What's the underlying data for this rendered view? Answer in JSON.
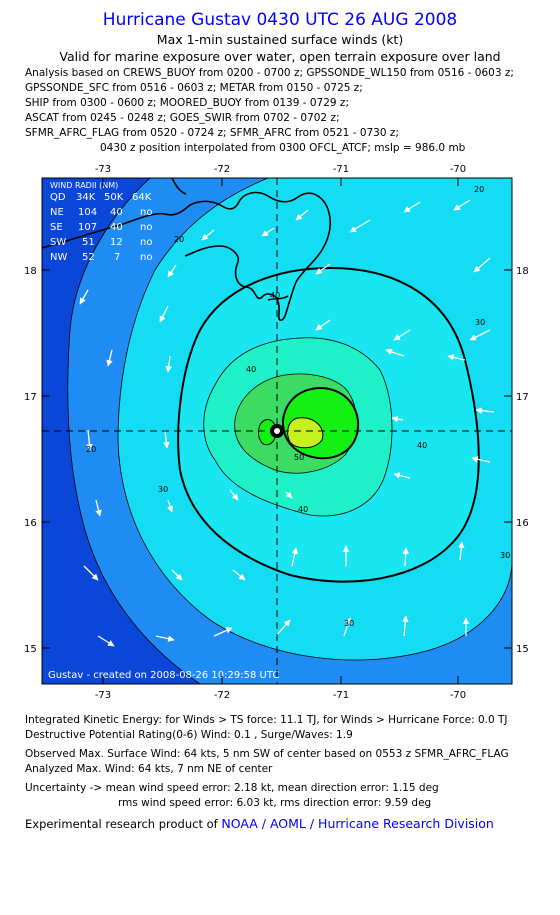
{
  "header": {
    "title": "Hurricane Gustav 0430 UTC 26 AUG 2008",
    "subtitle1": "Max 1-min sustained surface winds (kt)",
    "subtitle2": "Valid for marine exposure over water, open terrain exposure over land"
  },
  "analysis_lines": [
    "Analysis based on  CREWS_BUOY from 0200 - 0700 z;  GPSSONDE_WL150 from 0516 - 0603 z;",
    "GPSSONDE_SFC from 0516 - 0603 z;  METAR from 0150 - 0725 z;",
    "SHIP from 0300 - 0600 z;  MOORED_BUOY from 0139 - 0729 z;",
    "ASCAT from 0245 - 0248 z;  GOES_SWIR from 0702 - 0702 z;",
    "SFMR_AFRC_FLAG from 0520 - 0724 z;  SFMR_AFRC from 0521 - 0730 z;",
    "0430 z position interpolated from 0300 OFCL_ATCF; mslp = 986.0 mb"
  ],
  "map": {
    "x_ticks": [
      "-73",
      "-72",
      "-71",
      "-70"
    ],
    "y_ticks": [
      "18",
      "17",
      "16",
      "15"
    ],
    "contour_labels": [
      "20",
      "30",
      "40",
      "50"
    ],
    "credit": "Gustav - created on 2008-08-26 10:29:58 UTC",
    "wind_radii": {
      "title": "WIND RADII (NM)",
      "header": [
        "QD",
        "34K",
        "50K",
        "64K"
      ],
      "rows": [
        [
          "NE",
          "104",
          "40",
          "no"
        ],
        [
          "SE",
          "107",
          "40",
          "no"
        ],
        [
          "SW",
          "51",
          "12",
          "no"
        ],
        [
          "NW",
          "52",
          "7",
          "no"
        ]
      ]
    },
    "colors": {
      "lt20": "#0a46d8",
      "c20_30": "#1e8cf2",
      "c30_40": "#14dcf2",
      "c40_50": "#1ef0c8",
      "c50_60": "#3cdc64",
      "c60_64": "#14f014",
      "c64": "#c8f01e"
    }
  },
  "footer": {
    "ike": "Integrated Kinetic Energy:  for Winds > TS force: 11.1 TJ,  for Winds > Hurricane Force: 0.0 TJ",
    "dpr": "Destructive Potential Rating(0-6)  Wind: 0.1 , Surge/Waves: 1.9",
    "obs": "Observed Max. Surface Wind: 64 kts, 5 nm SW of center based on 0553 z SFMR_AFRC_FLAG",
    "analyzed": "Analyzed Max. Wind: 64 kts, 7 nm NE of center",
    "unc1": "Uncertainty -> mean wind speed error: 2.18 kt,   mean direction error: 1.15 deg",
    "unc2": "rms wind speed error: 6.03 kt,   rms direction error: 9.59 deg",
    "product_prefix": "Experimental research product of",
    "product_org": "NOAA / AOML / Hurricane Research Division"
  }
}
